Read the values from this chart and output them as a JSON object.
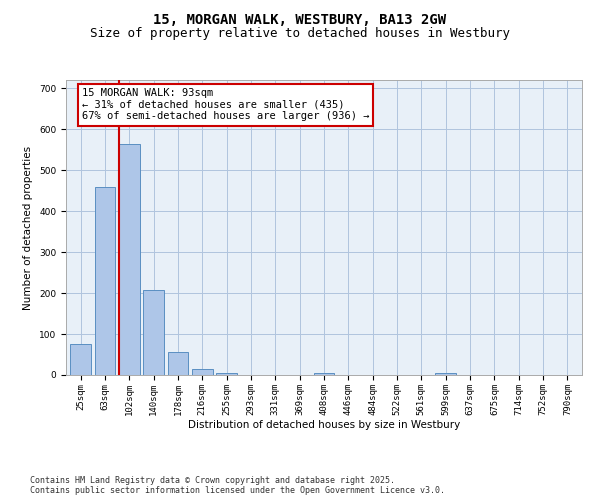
{
  "title_line1": "15, MORGAN WALK, WESTBURY, BA13 2GW",
  "title_line2": "Size of property relative to detached houses in Westbury",
  "xlabel": "Distribution of detached houses by size in Westbury",
  "ylabel": "Number of detached properties",
  "bar_labels": [
    "25sqm",
    "63sqm",
    "102sqm",
    "140sqm",
    "178sqm",
    "216sqm",
    "255sqm",
    "293sqm",
    "331sqm",
    "369sqm",
    "408sqm",
    "446sqm",
    "484sqm",
    "522sqm",
    "561sqm",
    "599sqm",
    "637sqm",
    "675sqm",
    "714sqm",
    "752sqm",
    "790sqm"
  ],
  "bar_values": [
    75,
    460,
    565,
    207,
    55,
    15,
    5,
    0,
    0,
    0,
    5,
    0,
    0,
    0,
    0,
    5,
    0,
    0,
    0,
    0,
    0
  ],
  "bar_color": "#aec6e8",
  "bar_edge_color": "#5a8fc2",
  "annotation_text": "15 MORGAN WALK: 93sqm\n← 31% of detached houses are smaller (435)\n67% of semi-detached houses are larger (936) →",
  "annotation_box_color": "#ffffff",
  "annotation_border_color": "#cc0000",
  "vline_color": "#cc0000",
  "ylim": [
    0,
    720
  ],
  "yticks": [
    0,
    100,
    200,
    300,
    400,
    500,
    600,
    700
  ],
  "grid_color": "#b0c4de",
  "bg_color": "#e8f0f8",
  "footnote": "Contains HM Land Registry data © Crown copyright and database right 2025.\nContains public sector information licensed under the Open Government Licence v3.0.",
  "title_fontsize": 10,
  "subtitle_fontsize": 9,
  "label_fontsize": 7.5,
  "tick_fontsize": 6.5,
  "annotation_fontsize": 7.5
}
